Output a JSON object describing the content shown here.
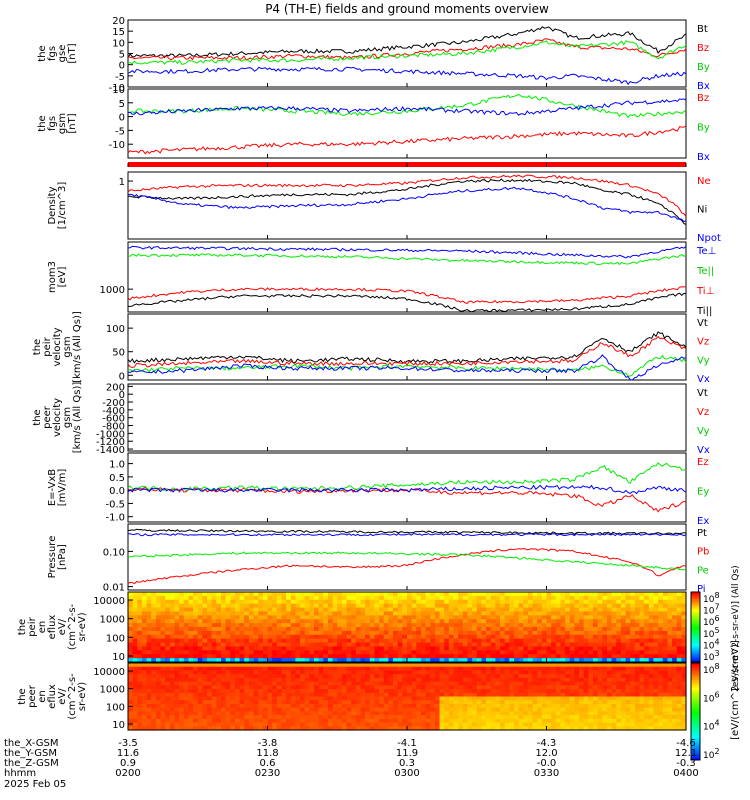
{
  "title": "P4 (TH-E) fields and ground moments overview",
  "colors": {
    "black": "#000000",
    "red": "#ff0000",
    "green": "#00ee00",
    "blue": "#0000ff"
  },
  "chart_data": [
    {
      "id": "fgs_gse",
      "type": "line",
      "ylabel": [
        "the",
        "fgs",
        "gse",
        "[nT]"
      ],
      "ylim": [
        -10,
        20
      ],
      "yticks": [
        "20",
        "15",
        "10",
        "5",
        "0",
        "-5",
        "-10"
      ],
      "legend": [
        "Bt",
        "Bz",
        "By",
        "Bx"
      ],
      "series": [
        {
          "name": "Bt",
          "color": "#000000",
          "x": [
            0,
            0.1,
            0.2,
            0.3,
            0.4,
            0.5,
            0.6,
            0.7,
            0.75,
            0.8,
            0.9,
            0.95,
            1
          ],
          "y": [
            4,
            4,
            5,
            6,
            6,
            8,
            10,
            14,
            17,
            12,
            14,
            6,
            13
          ]
        },
        {
          "name": "Bz",
          "color": "#ff0000",
          "x": [
            0,
            0.1,
            0.2,
            0.3,
            0.4,
            0.5,
            0.6,
            0.7,
            0.75,
            0.8,
            0.9,
            0.95,
            1
          ],
          "y": [
            3,
            3,
            3,
            4,
            3,
            5,
            7,
            9,
            11,
            8,
            7,
            4,
            7
          ]
        },
        {
          "name": "By",
          "color": "#00ee00",
          "x": [
            0,
            0.1,
            0.2,
            0.3,
            0.4,
            0.5,
            0.6,
            0.7,
            0.75,
            0.8,
            0.9,
            0.95,
            1
          ],
          "y": [
            1,
            1,
            2,
            2,
            3,
            4,
            5,
            8,
            10,
            8,
            10,
            3,
            9
          ]
        },
        {
          "name": "Bx",
          "color": "#0000ff",
          "x": [
            0,
            0.1,
            0.2,
            0.3,
            0.4,
            0.5,
            0.6,
            0.7,
            0.75,
            0.8,
            0.9,
            0.95,
            1
          ],
          "y": [
            -3,
            -3,
            -2,
            -2,
            -2,
            -3,
            -4,
            -5,
            -6,
            -5,
            -8,
            -5,
            -4
          ]
        }
      ]
    },
    {
      "id": "fgs_gsm",
      "type": "line",
      "ylabel": [
        "the",
        "fgs",
        "gsm",
        "[nT]"
      ],
      "ylim": [
        -15,
        10
      ],
      "yticks": [
        "10",
        "5",
        "0",
        "-5",
        "-10"
      ],
      "legend": [
        "Bz",
        "By",
        "Bx"
      ],
      "series": [
        {
          "name": "Bz",
          "color": "#ff0000",
          "x": [
            0,
            0.1,
            0.2,
            0.3,
            0.4,
            0.5,
            0.6,
            0.7,
            0.8,
            0.9,
            1
          ],
          "y": [
            -13,
            -12,
            -11,
            -10,
            -10,
            -9,
            -8,
            -7,
            -6,
            -7,
            -4
          ]
        },
        {
          "name": "By",
          "color": "#00ee00",
          "x": [
            0,
            0.1,
            0.2,
            0.3,
            0.4,
            0.5,
            0.6,
            0.7,
            0.8,
            0.9,
            1
          ],
          "y": [
            2,
            2,
            3,
            2,
            1,
            2,
            4,
            8,
            4,
            0,
            2
          ]
        },
        {
          "name": "Bx",
          "color": "#0000ff",
          "x": [
            0,
            0.1,
            0.2,
            0.3,
            0.4,
            0.5,
            0.6,
            0.7,
            0.8,
            0.9,
            1
          ],
          "y": [
            1,
            2,
            3,
            3,
            2,
            3,
            2,
            1,
            3,
            5,
            6
          ]
        }
      ]
    },
    {
      "id": "density",
      "type": "line",
      "scale": "log",
      "ylabel": [
        "Density",
        "[1/cm^3]"
      ],
      "ylim": [
        0.05,
        1.6
      ],
      "yticks": [
        "1"
      ],
      "legend": [
        "Ne",
        "Ni",
        "Npot"
      ],
      "series": [
        {
          "name": "Ne",
          "color": "#ff0000",
          "x": [
            0,
            0.1,
            0.2,
            0.3,
            0.4,
            0.5,
            0.6,
            0.7,
            0.8,
            0.85,
            0.9,
            0.95,
            1
          ],
          "y": [
            0.6,
            0.75,
            0.8,
            0.8,
            0.8,
            0.9,
            1.2,
            1.3,
            1.2,
            1.0,
            0.8,
            0.5,
            0.15
          ]
        },
        {
          "name": "Ni",
          "color": "#000000",
          "x": [
            0,
            0.1,
            0.2,
            0.3,
            0.4,
            0.5,
            0.6,
            0.7,
            0.8,
            0.85,
            0.9,
            0.95,
            1
          ],
          "y": [
            0.45,
            0.4,
            0.45,
            0.5,
            0.5,
            0.65,
            1.0,
            1.05,
            0.9,
            0.6,
            0.5,
            0.3,
            0.1
          ]
        },
        {
          "name": "Npot",
          "color": "#0000ff",
          "x": [
            0,
            0.1,
            0.2,
            0.3,
            0.4,
            0.5,
            0.6,
            0.7,
            0.8,
            0.85,
            0.9,
            0.95,
            1
          ],
          "y": [
            0.5,
            0.3,
            0.25,
            0.28,
            0.3,
            0.4,
            0.6,
            0.7,
            0.4,
            0.25,
            0.2,
            0.2,
            0.12
          ]
        }
      ]
    },
    {
      "id": "temperature",
      "type": "line",
      "scale": "log",
      "ylabel": [
        "mom3",
        "[eV]"
      ],
      "ylim": [
        300,
        12000
      ],
      "yticks": [
        "1000"
      ],
      "legend": [
        "Te⊥",
        "Te||",
        "Ti⊥",
        "Ti||"
      ],
      "series": [
        {
          "name": "Te⊥",
          "color": "#0000ff",
          "x": [
            0,
            0.2,
            0.4,
            0.6,
            0.8,
            0.9,
            1
          ],
          "y": [
            9000,
            8500,
            8000,
            7500,
            6000,
            5500,
            9000
          ]
        },
        {
          "name": "Te||",
          "color": "#00ee00",
          "x": [
            0,
            0.2,
            0.4,
            0.6,
            0.8,
            0.9,
            1
          ],
          "y": [
            6000,
            6000,
            5500,
            4500,
            4000,
            3800,
            6000
          ]
        },
        {
          "name": "Ti⊥",
          "color": "#ff0000",
          "x": [
            0,
            0.1,
            0.2,
            0.4,
            0.5,
            0.6,
            0.7,
            0.8,
            0.9,
            1
          ],
          "y": [
            600,
            850,
            1000,
            1000,
            900,
            500,
            520,
            550,
            700,
            1100
          ]
        },
        {
          "name": "Ti||",
          "color": "#000000",
          "x": [
            0,
            0.1,
            0.2,
            0.4,
            0.5,
            0.6,
            0.7,
            0.8,
            0.9,
            1
          ],
          "y": [
            420,
            550,
            700,
            700,
            600,
            320,
            330,
            350,
            450,
            800
          ]
        }
      ]
    },
    {
      "id": "peir_velocity",
      "type": "line",
      "ylabel": [
        "the",
        "peir",
        "velocity",
        "gsm",
        "[km/s (All Qs)]"
      ],
      "ylim": [
        -10,
        130
      ],
      "yticks": [
        "100",
        "50",
        "0"
      ],
      "legend": [
        "Vt",
        "Vz",
        "Vy",
        "Vx"
      ],
      "series": [
        {
          "name": "Vt",
          "color": "#000000",
          "x": [
            0,
            0.1,
            0.2,
            0.3,
            0.4,
            0.5,
            0.6,
            0.7,
            0.8,
            0.85,
            0.9,
            0.95,
            1
          ],
          "y": [
            30,
            35,
            40,
            30,
            35,
            30,
            30,
            35,
            40,
            80,
            50,
            90,
            60
          ]
        },
        {
          "name": "Vz",
          "color": "#ff0000",
          "x": [
            0,
            0.1,
            0.2,
            0.3,
            0.4,
            0.5,
            0.6,
            0.7,
            0.8,
            0.85,
            0.9,
            0.95,
            1
          ],
          "y": [
            20,
            25,
            30,
            25,
            25,
            25,
            25,
            30,
            30,
            70,
            40,
            80,
            55
          ]
        },
        {
          "name": "Vy",
          "color": "#00ee00",
          "x": [
            0,
            0.1,
            0.2,
            0.3,
            0.4,
            0.5,
            0.6,
            0.7,
            0.8,
            0.85,
            0.9,
            0.95,
            1
          ],
          "y": [
            10,
            15,
            15,
            20,
            15,
            20,
            15,
            15,
            10,
            20,
            0,
            40,
            30
          ]
        },
        {
          "name": "Vx",
          "color": "#0000ff",
          "x": [
            0,
            0.1,
            0.2,
            0.3,
            0.4,
            0.5,
            0.6,
            0.7,
            0.8,
            0.85,
            0.9,
            0.95,
            1
          ],
          "y": [
            5,
            10,
            20,
            15,
            15,
            15,
            10,
            10,
            10,
            40,
            -10,
            20,
            40
          ]
        }
      ]
    },
    {
      "id": "peer_velocity",
      "type": "line",
      "ylabel": [
        "the",
        "peer",
        "velocity",
        "gsm",
        "[km/s (All Qs)]"
      ],
      "ylim": [
        -1450,
        260
      ],
      "yticks": [
        "200",
        "0",
        "-200",
        "-400",
        "-600",
        "-800",
        "-1000",
        "-1200",
        "-1400"
      ],
      "legend": [
        "Vt",
        "Vz",
        "Vy",
        "Vx"
      ],
      "series": []
    },
    {
      "id": "efield",
      "type": "line",
      "ylabel": [
        "E=-VxB",
        "[mV/m]"
      ],
      "ylim": [
        -1.2,
        1.4
      ],
      "yticks": [
        "1.0",
        "0.5",
        "0.0",
        "-0.5",
        "-1.0"
      ],
      "legend": [
        "Ez",
        "Ey",
        "Ex"
      ],
      "series": [
        {
          "name": "Ez",
          "color": "#ff0000",
          "x": [
            0,
            0.1,
            0.2,
            0.3,
            0.4,
            0.5,
            0.6,
            0.7,
            0.8,
            0.85,
            0.9,
            0.95,
            1
          ],
          "y": [
            0.05,
            0,
            0,
            -0.05,
            0,
            0,
            -0.1,
            -0.1,
            -0.2,
            -0.6,
            -0.2,
            -0.8,
            -0.4
          ]
        },
        {
          "name": "Ey",
          "color": "#00ee00",
          "x": [
            0,
            0.1,
            0.2,
            0.3,
            0.4,
            0.5,
            0.6,
            0.7,
            0.8,
            0.85,
            0.9,
            0.95,
            1
          ],
          "y": [
            0.1,
            0.05,
            0.1,
            0.05,
            0.1,
            0.2,
            0.3,
            0.3,
            0.4,
            0.9,
            0.3,
            1.0,
            0.8
          ]
        },
        {
          "name": "Ex",
          "color": "#0000ff",
          "x": [
            0,
            0.1,
            0.2,
            0.3,
            0.4,
            0.5,
            0.6,
            0.7,
            0.8,
            0.85,
            0.9,
            0.95,
            1
          ],
          "y": [
            0,
            0,
            0,
            0,
            0,
            0,
            0.05,
            0.1,
            0.1,
            0.1,
            -0.1,
            0.1,
            0
          ]
        }
      ]
    },
    {
      "id": "pressure",
      "type": "line",
      "scale": "log",
      "ylabel": [
        "Pressure",
        "[nPa]"
      ],
      "ylim": [
        0.008,
        0.6
      ],
      "yticks": [
        "0.10",
        "0.01"
      ],
      "legend": [
        "Pt",
        "Pb",
        "Pe",
        "Pi"
      ],
      "series": [
        {
          "name": "Pt",
          "color": "#000000",
          "x": [
            0,
            0.2,
            0.4,
            0.6,
            0.8,
            1
          ],
          "y": [
            0.4,
            0.38,
            0.36,
            0.35,
            0.33,
            0.32
          ]
        },
        {
          "name": "Pb",
          "color": "#ff0000",
          "x": [
            0,
            0.1,
            0.2,
            0.3,
            0.4,
            0.5,
            0.6,
            0.7,
            0.8,
            0.85,
            0.9,
            0.95,
            1
          ],
          "y": [
            0.012,
            0.02,
            0.03,
            0.04,
            0.035,
            0.04,
            0.08,
            0.12,
            0.1,
            0.07,
            0.05,
            0.02,
            0.04
          ]
        },
        {
          "name": "Pe",
          "color": "#00ee00",
          "x": [
            0,
            0.2,
            0.4,
            0.6,
            0.8,
            0.9,
            1
          ],
          "y": [
            0.07,
            0.09,
            0.09,
            0.08,
            0.05,
            0.04,
            0.03
          ]
        },
        {
          "name": "Pi",
          "color": "#0000ff",
          "x": [
            0,
            1
          ],
          "y": [
            0.3,
            0.3
          ]
        }
      ]
    },
    {
      "id": "peir_eflux",
      "type": "heatmap",
      "ylabel": [
        "the",
        "peir",
        "en",
        "eflux",
        "eV/",
        "(cm^2-s-",
        "sr-eV)"
      ],
      "yticks": [
        "10000",
        "1000",
        "100",
        "10"
      ],
      "colorbar_ticks": [
        "10^8",
        "10^7",
        "10^6",
        "10^5",
        "10^4",
        "10^3"
      ],
      "colorbar_label": "[eV/(cm^2-s-sr-eV)] (All Qs)"
    },
    {
      "id": "peer_eflux",
      "type": "heatmap",
      "ylabel": [
        "the",
        "peer",
        "en",
        "eflux",
        "eV/",
        "(cm^2-s-",
        "sr-eV)"
      ],
      "yticks": [
        "10000",
        "1000",
        "100",
        "10"
      ],
      "colorbar_ticks": [
        "10^8",
        "10^6",
        "10^4",
        "10^2"
      ],
      "colorbar_label": "[eV/(cm^2-s-sr-eV)]"
    }
  ],
  "xaxis": {
    "row_labels": [
      "the_X-GSM",
      "the_Y-GSM",
      "the_Z-GSM",
      "hhmm",
      "2025 Feb 05"
    ],
    "columns": [
      [
        "-3.5",
        "11.6",
        "0.9",
        "0200"
      ],
      [
        "-3.8",
        "11.8",
        "0.6",
        "0230"
      ],
      [
        "-4.1",
        "11.9",
        "0.3",
        "0300"
      ],
      [
        "-4.3",
        "12.0",
        "-0.0",
        "0330"
      ],
      [
        "-4.6",
        "12.1",
        "-0.3",
        "0400"
      ]
    ]
  }
}
